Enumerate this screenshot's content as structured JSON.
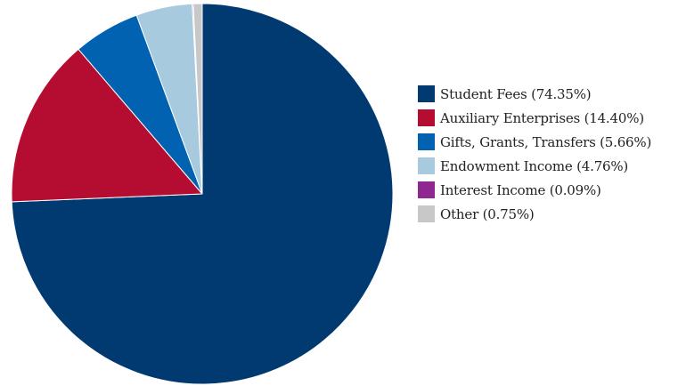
{
  "chart_data": {
    "type": "pie",
    "start_angle_deg": 0,
    "direction": "clockwise",
    "legend_position": "right",
    "slices": [
      {
        "label": "Student Fees (74.35%)",
        "value": 74.35,
        "color": "#003a70"
      },
      {
        "label": "Auxiliary Enterprises (14.40%)",
        "value": 14.4,
        "color": "#b50d32"
      },
      {
        "label": "Gifts, Grants, Transfers (5.66%)",
        "value": 5.66,
        "color": "#0062b0"
      },
      {
        "label": "Endowment Income (4.76%)",
        "value": 4.76,
        "color": "#a7cade"
      },
      {
        "label": "Interest Income (0.09%)",
        "value": 0.09,
        "color": "#8e278f"
      },
      {
        "label": "Other (0.75%)",
        "value": 0.75,
        "color": "#c8c8c8"
      }
    ]
  }
}
